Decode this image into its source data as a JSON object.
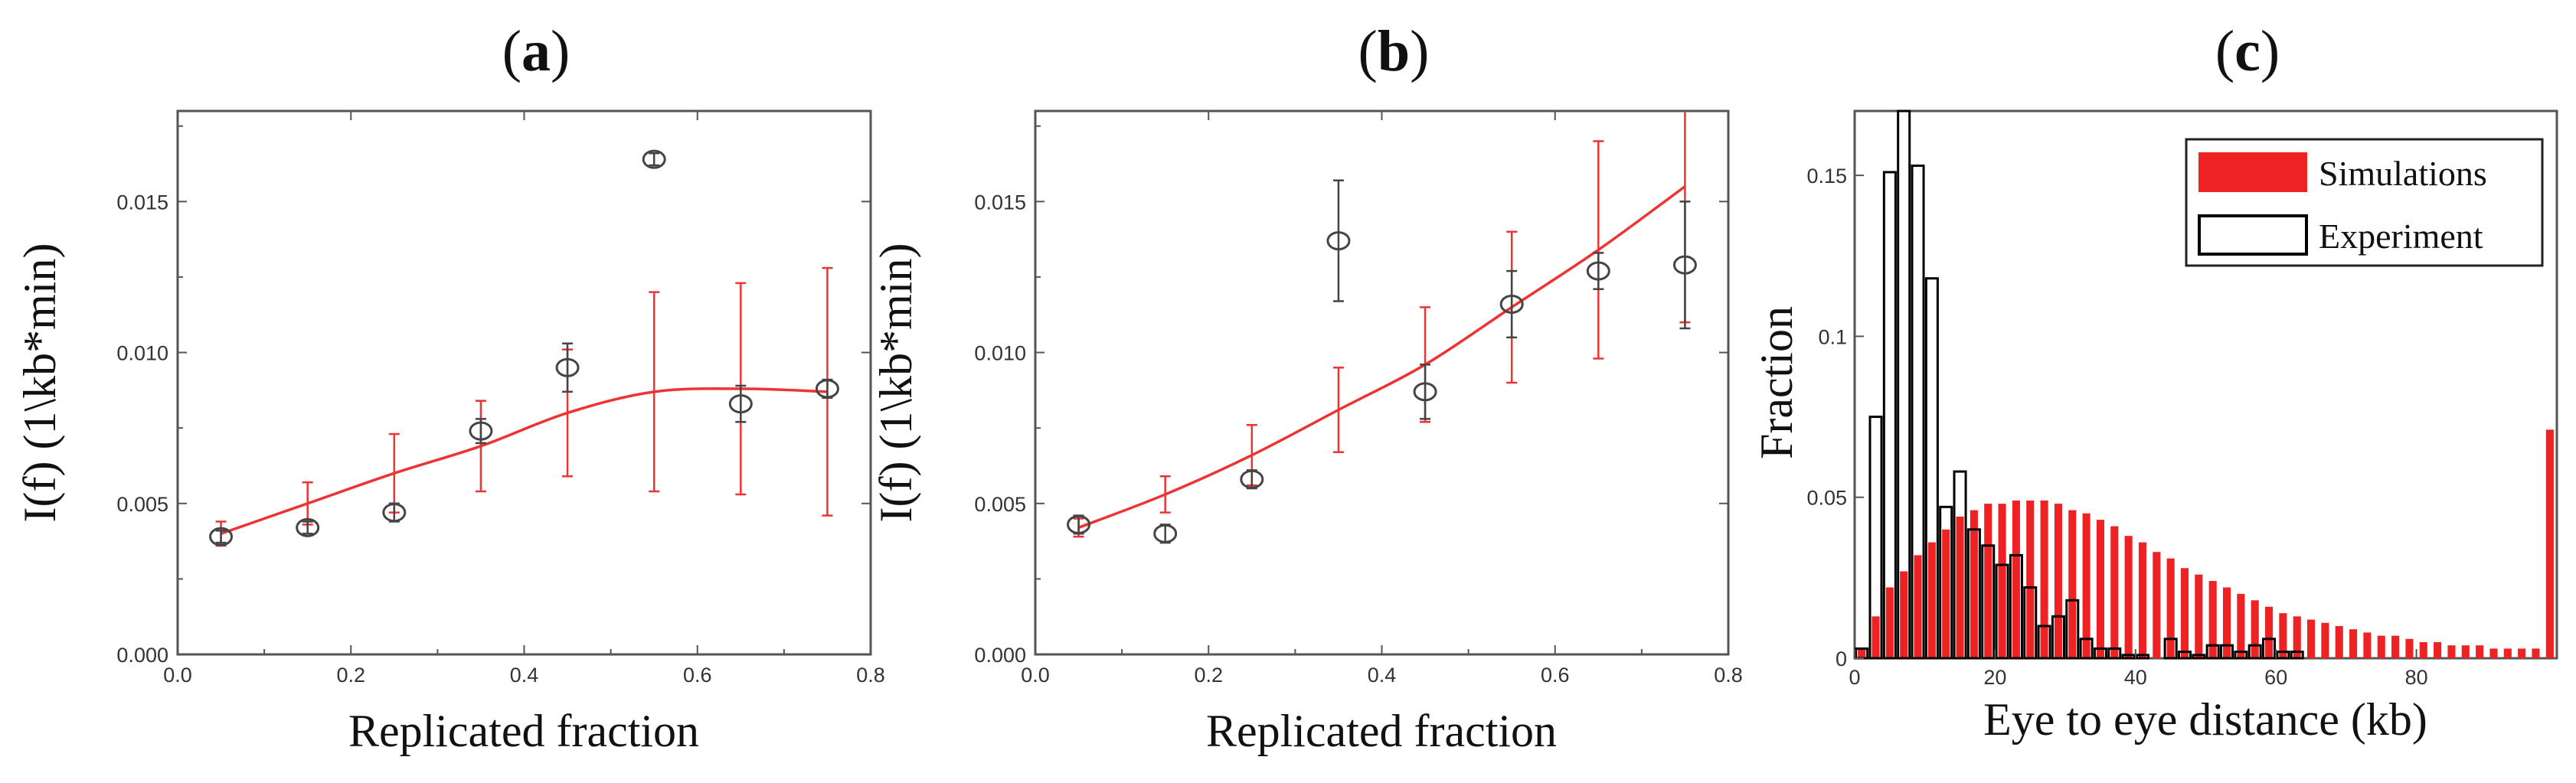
{
  "panels": {
    "a": {
      "label": "a",
      "xlabel": "Replicated fraction",
      "ylabel": "I(f) (1\\kb*min)",
      "xticks": [
        "0.0",
        "0.2",
        "0.4",
        "0.6",
        "0.8"
      ],
      "yticks": [
        "0.000",
        "0.005",
        "0.010",
        "0.015"
      ]
    },
    "b": {
      "label": "b",
      "xlabel": "Replicated fraction",
      "ylabel": "I(f) (1\\kb*min)",
      "xticks": [
        "0.0",
        "0.2",
        "0.4",
        "0.6",
        "0.8"
      ],
      "yticks": [
        "0.000",
        "0.005",
        "0.010",
        "0.015"
      ]
    },
    "c": {
      "label": "c",
      "xlabel": "Eye to eye distance (kb)",
      "ylabel": "Fraction",
      "xticks": [
        "0",
        "20",
        "40",
        "60",
        "80"
      ],
      "yticks": [
        "0",
        "0.05",
        "0.1",
        "0.15"
      ],
      "legend": [
        "Simulations",
        "Experiment"
      ]
    }
  },
  "chart_data": [
    {
      "type": "scatter",
      "panel": "a",
      "xlabel": "Replicated fraction",
      "ylabel": "I(f) (1\\kb*min)",
      "xlim": [
        0,
        0.8
      ],
      "ylim": [
        0,
        0.018
      ],
      "experiment": {
        "x": [
          0.05,
          0.15,
          0.25,
          0.35,
          0.45,
          0.55,
          0.65,
          0.75
        ],
        "y": [
          0.0039,
          0.0042,
          0.0047,
          0.0074,
          0.0095,
          0.0164,
          0.0083,
          0.0088
        ],
        "err": [
          0.0002,
          0.0002,
          0.0003,
          0.0004,
          0.0008,
          0.0002,
          0.0006,
          0.0003
        ]
      },
      "simulation": {
        "x": [
          0.05,
          0.15,
          0.25,
          0.35,
          0.45,
          0.55,
          0.65,
          0.75
        ],
        "y": [
          0.004,
          0.005,
          0.006,
          0.0069,
          0.008,
          0.0087,
          0.0088,
          0.0087
        ],
        "err": [
          0.0004,
          0.0007,
          0.0013,
          0.0015,
          0.0021,
          0.0033,
          0.0035,
          0.0041
        ]
      },
      "colors": {
        "experiment": "#444444",
        "simulation": "#ee3333"
      }
    },
    {
      "type": "scatter",
      "panel": "b",
      "xlabel": "Replicated fraction",
      "ylabel": "I(f) (1\\kb*min)",
      "xlim": [
        0,
        0.8
      ],
      "ylim": [
        0,
        0.018
      ],
      "experiment": {
        "x": [
          0.05,
          0.15,
          0.25,
          0.35,
          0.45,
          0.55,
          0.65,
          0.75
        ],
        "y": [
          0.0043,
          0.004,
          0.0058,
          0.0137,
          0.0087,
          0.0116,
          0.0127,
          0.0129
        ],
        "err": [
          0.0003,
          0.0003,
          0.0003,
          0.002,
          0.0009,
          0.0011,
          0.0006,
          0.0021
        ]
      },
      "simulation": {
        "x": [
          0.05,
          0.15,
          0.25,
          0.35,
          0.45,
          0.55,
          0.65,
          0.75
        ],
        "y": [
          0.0042,
          0.0053,
          0.0066,
          0.0081,
          0.0096,
          0.0115,
          0.0134,
          0.0155
        ],
        "err": [
          0.0003,
          0.0006,
          0.001,
          0.0014,
          0.0019,
          0.0025,
          0.0036,
          0.0045
        ]
      },
      "colors": {
        "experiment": "#444444",
        "simulation": "#ee3333"
      }
    },
    {
      "type": "bar",
      "panel": "c",
      "xlabel": "Eye to eye distance (kb)",
      "ylabel": "Fraction",
      "xlim": [
        0,
        100
      ],
      "ylim": [
        0,
        0.17
      ],
      "series": [
        {
          "name": "Simulations",
          "color": "#ee2222",
          "bin_width": 2,
          "x": [
            1,
            3,
            5,
            7,
            9,
            11,
            13,
            15,
            17,
            19,
            21,
            23,
            25,
            27,
            29,
            31,
            33,
            35,
            37,
            39,
            41,
            43,
            45,
            47,
            49,
            51,
            53,
            55,
            57,
            59,
            61,
            63,
            65,
            67,
            69,
            71,
            73,
            75,
            77,
            79,
            81,
            83,
            85,
            87,
            89,
            91,
            93,
            95,
            97,
            99
          ],
          "values": [
            0.003,
            0.013,
            0.022,
            0.027,
            0.032,
            0.036,
            0.04,
            0.044,
            0.046,
            0.048,
            0.048,
            0.049,
            0.049,
            0.049,
            0.048,
            0.046,
            0.045,
            0.043,
            0.041,
            0.038,
            0.036,
            0.033,
            0.031,
            0.028,
            0.026,
            0.024,
            0.022,
            0.02,
            0.018,
            0.016,
            0.014,
            0.013,
            0.012,
            0.011,
            0.01,
            0.009,
            0.008,
            0.007,
            0.007,
            0.006,
            0.005,
            0.005,
            0.004,
            0.004,
            0.004,
            0.003,
            0.003,
            0.003,
            0.003,
            0.071
          ]
        },
        {
          "name": "Experiment",
          "color": "#000000",
          "bin_width": 2,
          "x": [
            1,
            3,
            5,
            7,
            9,
            11,
            13,
            15,
            17,
            19,
            21,
            23,
            25,
            27,
            29,
            31,
            33,
            35,
            37,
            39,
            41,
            43,
            45,
            47,
            49,
            51,
            53,
            55,
            57,
            59,
            61,
            63
          ],
          "values": [
            0.003,
            0.075,
            0.151,
            0.17,
            0.153,
            0.118,
            0.047,
            0.058,
            0.04,
            0.035,
            0.029,
            0.032,
            0.022,
            0.01,
            0.013,
            0.018,
            0.006,
            0.003,
            0.003,
            0.001,
            0.001,
            0,
            0.006,
            0.002,
            0.001,
            0.004,
            0.004,
            0.002,
            0.004,
            0.006,
            0.002,
            0.002
          ]
        }
      ],
      "legend": "top-right"
    }
  ]
}
